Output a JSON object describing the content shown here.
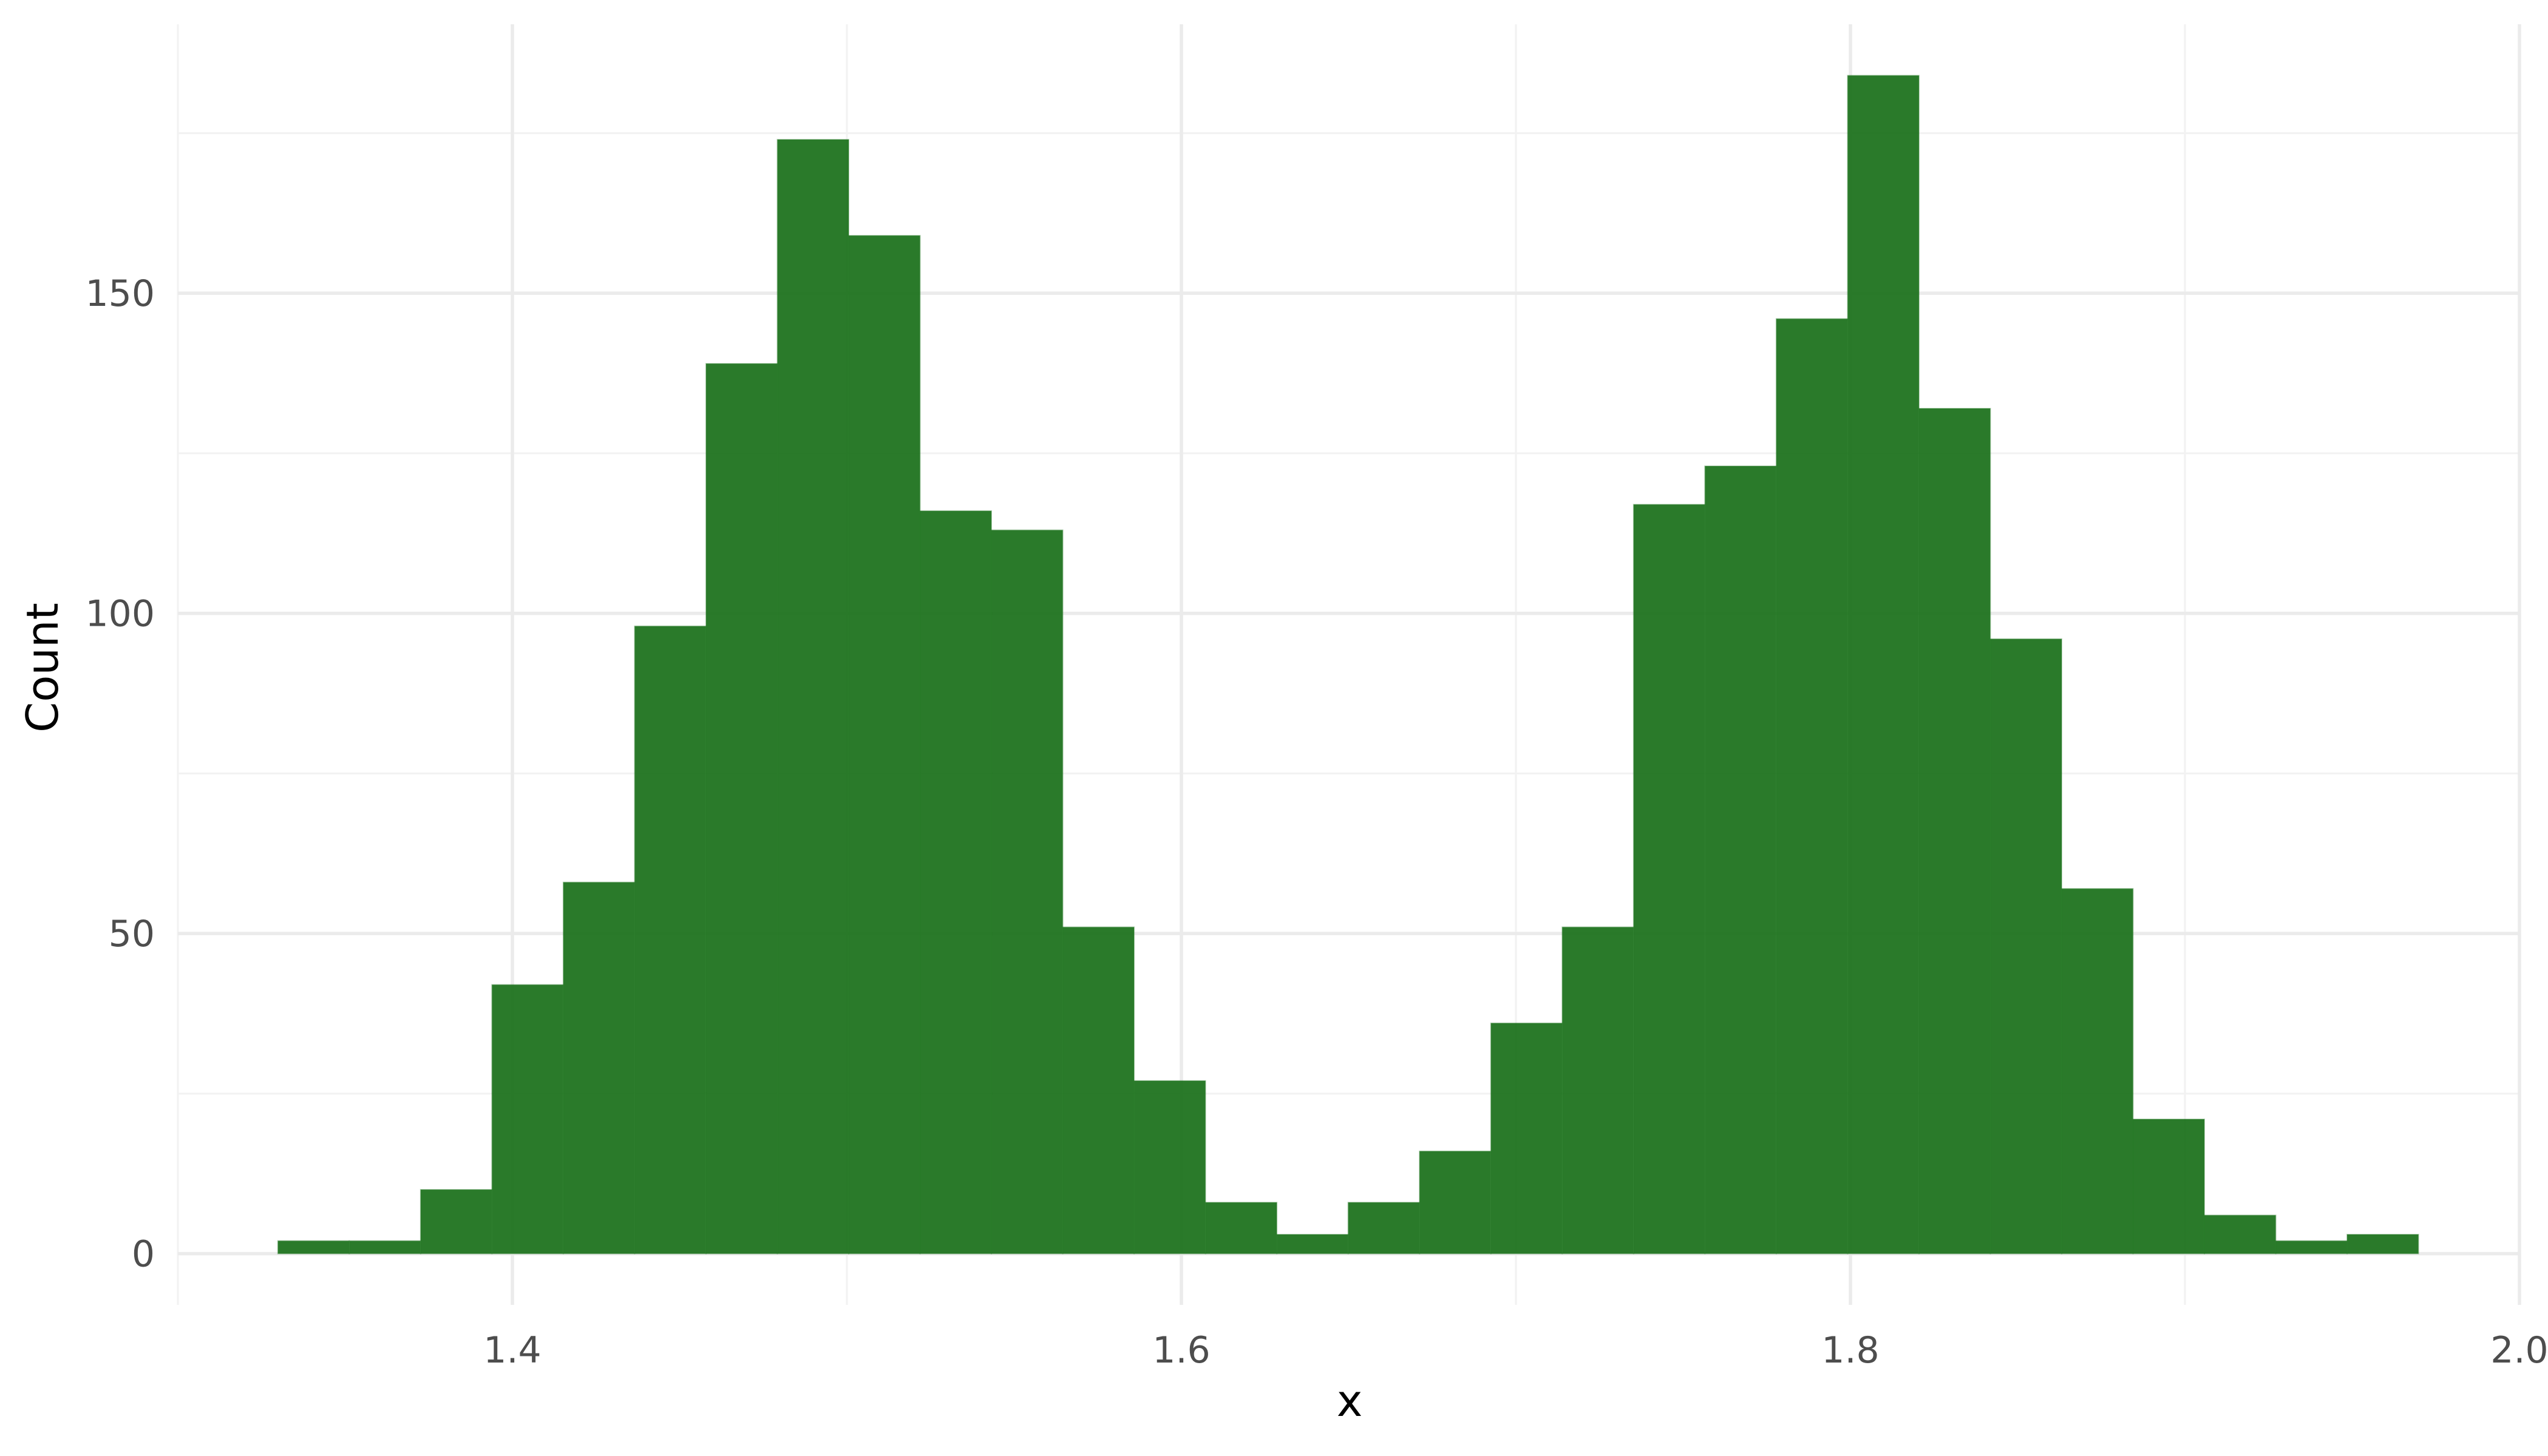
{
  "chart_data": {
    "type": "histogram",
    "xlabel": "x",
    "ylabel": "Count",
    "xlim": [
      1.3,
      2.0
    ],
    "ylim": [
      -8,
      192
    ],
    "x_ticks": [
      1.4,
      1.6,
      1.8,
      2.0
    ],
    "x_tick_labels": [
      "1.4",
      "1.6",
      "1.8",
      "2.0"
    ],
    "y_ticks": [
      0,
      50,
      100,
      150
    ],
    "y_tick_labels": [
      "0",
      "50",
      "100",
      "150"
    ],
    "bar_color": "#1a701a",
    "grid": true,
    "bin_start": 1.3299,
    "bin_width": 0.02133,
    "values": [
      2,
      2,
      10,
      42,
      58,
      98,
      139,
      174,
      159,
      116,
      113,
      51,
      27,
      8,
      3,
      8,
      16,
      36,
      51,
      117,
      123,
      146,
      184,
      132,
      96,
      57,
      21,
      6,
      2,
      3
    ]
  }
}
